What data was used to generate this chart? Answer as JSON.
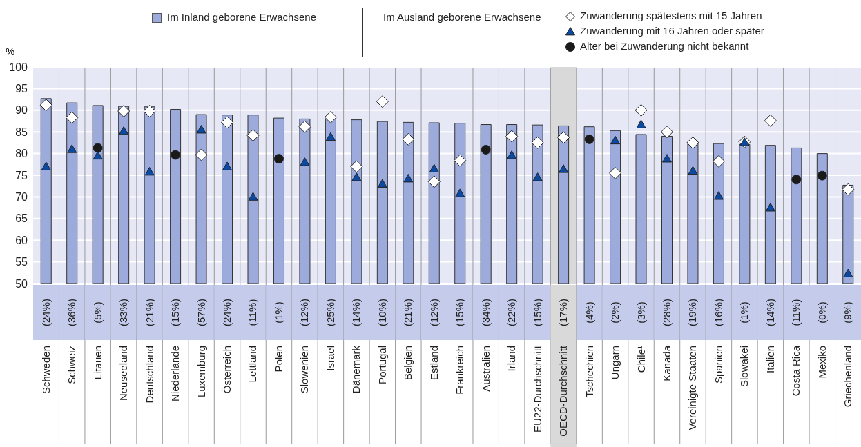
{
  "chart_data": {
    "type": "bar",
    "ylabel": "%",
    "legend_title": "Im Ausland geborene Erwachsene",
    "legend": "top",
    "grid": "y",
    "categories": [
      "Schweden",
      "Schweiz",
      "Litauen",
      "Neuseeland",
      "Deutschland",
      "Niederlande",
      "Luxemburg",
      "Österreich",
      "Lettland",
      "Polen",
      "Slowenien",
      "Israel",
      "Dänemark",
      "Portugal",
      "Belgien",
      "Estland",
      "Frankreich",
      "Australien",
      "Irland",
      "EU22-Durchschnitt",
      "OECD-Durchschnitt",
      "Tschechien",
      "Ungarn",
      "Chile¹",
      "Kanada",
      "Vereinigte Staaten",
      "Spanien",
      "Slowakei",
      "Italien",
      "Costa Rica",
      "Mexiko",
      "Griechenland"
    ],
    "ylim": [
      50,
      100
    ],
    "yticks": [
      50,
      55,
      60,
      65,
      70,
      75,
      80,
      85,
      90,
      95,
      100
    ],
    "series": [
      {
        "name": "Im Inland geborene Erwachsene",
        "color": "#9dabdc",
        "values": [
          92.7,
          91.7,
          91.1,
          90.9,
          90.8,
          90.2,
          89.0,
          88.9,
          88.9,
          88.2,
          88.0,
          88.0,
          87.8,
          87.4,
          87.2,
          87.1,
          87.0,
          86.7,
          86.7,
          86.6,
          86.4,
          86.2,
          85.3,
          84.4,
          84.0,
          82.7,
          82.3,
          82.1,
          81.9,
          81.3,
          80.0,
          72.7
        ]
      },
      {
        "name": "Zuwanderung spätestens mit 15 Jahren",
        "type": "scatter",
        "marker": "diamond",
        "color": "#ffffff",
        "values": [
          91.2,
          88.3,
          null,
          89.8,
          89.8,
          null,
          79.7,
          87.2,
          84.2,
          null,
          86.2,
          88.4,
          77.0,
          92.0,
          83.3,
          73.5,
          78.4,
          null,
          84.0,
          82.5,
          83.7,
          null,
          75.5,
          90.0,
          85.0,
          82.5,
          78.2,
          82.7,
          87.6,
          null,
          null,
          71.7
        ]
      },
      {
        "name": "Zuwanderung mit 16 Jahren oder später",
        "type": "scatter",
        "marker": "triangle",
        "color": "#0b4aa2",
        "values": [
          77.0,
          81.0,
          79.5,
          85.2,
          75.8,
          null,
          85.5,
          77.0,
          70.0,
          null,
          78.0,
          83.8,
          74.5,
          73.0,
          74.2,
          76.5,
          70.8,
          null,
          79.6,
          74.5,
          76.4,
          null,
          83.0,
          86.7,
          78.8,
          76.0,
          70.2,
          82.6,
          67.5,
          null,
          null,
          52.3
        ]
      },
      {
        "name": "Alter bei Zuwanderung nicht bekannt",
        "type": "scatter",
        "marker": "circle",
        "color": "#1a1a1a",
        "values": [
          null,
          null,
          81.3,
          null,
          null,
          79.7,
          null,
          null,
          null,
          78.8,
          null,
          null,
          null,
          null,
          null,
          null,
          null,
          80.9,
          null,
          null,
          null,
          83.3,
          null,
          null,
          null,
          null,
          null,
          null,
          null,
          74.0,
          74.9,
          null
        ]
      }
    ],
    "bands": [
      {
        "axis": "x",
        "from": "OECD-Durchschnitt",
        "to": "OECD-Durchschnitt",
        "color": "#d9d9d9"
      }
    ],
    "annotations": [
      "(24%)",
      "(36%)",
      "(5%)",
      "(33%)",
      "(21%)",
      "(15%)",
      "(57%)",
      "(24%)",
      "(11%)",
      "(1%)",
      "(12%)",
      "(25%)",
      "(14%)",
      "(10%)",
      "(21%)",
      "(12%)",
      "(15%)",
      "(34%)",
      "(22%)",
      "(15%)",
      "(17%)",
      "(4%)",
      "(2%)",
      "(3%)",
      "(28%)",
      "(19%)",
      "(16%)",
      "(1%)",
      "(14%)",
      "(11%)",
      "(0%)",
      "(9%)"
    ]
  }
}
